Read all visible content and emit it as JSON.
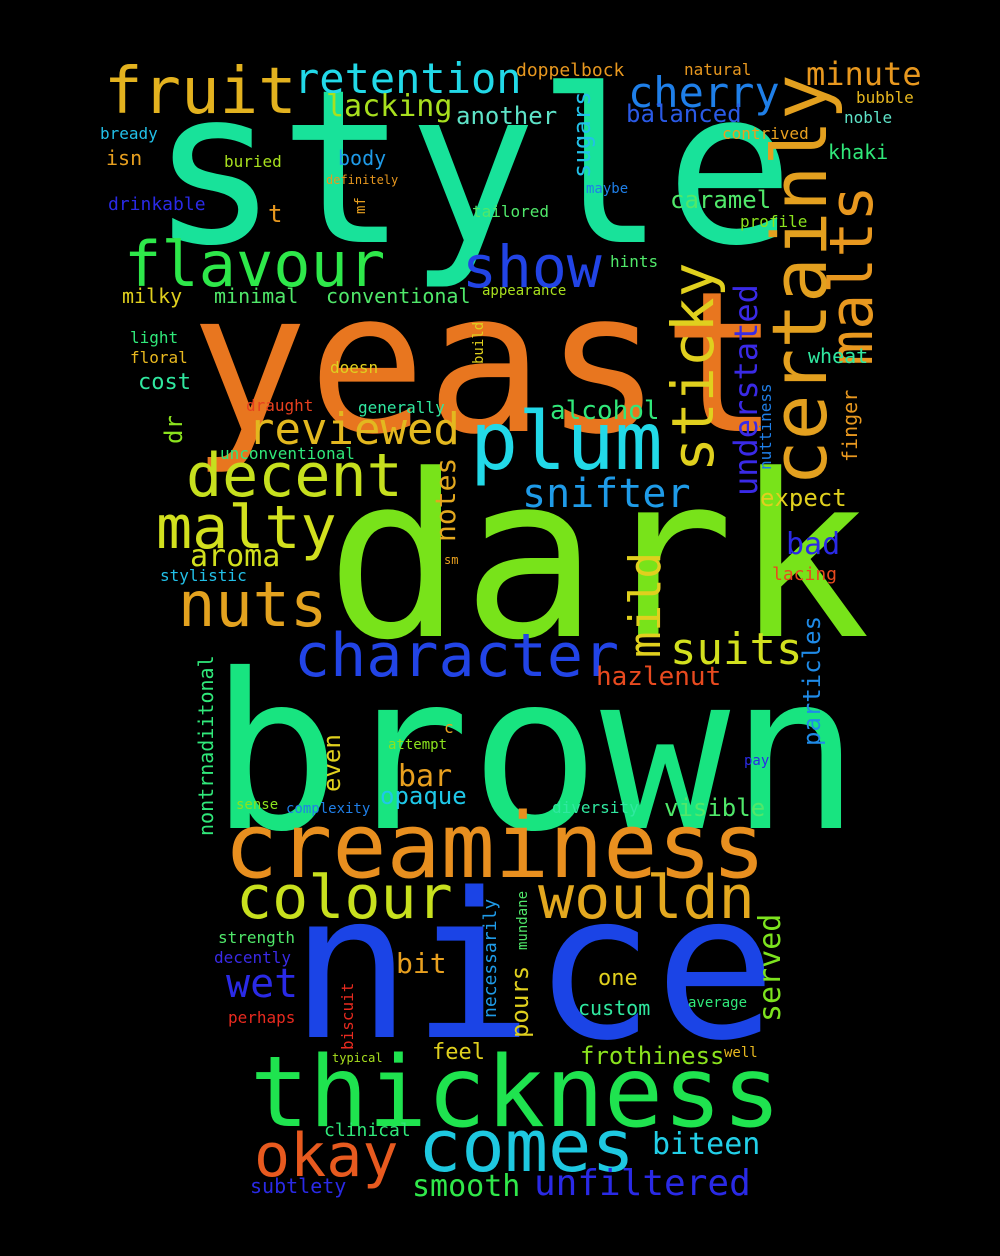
{
  "words": [
    {
      "text": "style",
      "color": "#18e29a"
    },
    {
      "text": "yeast",
      "color": "#e8761f"
    },
    {
      "text": "dark",
      "color": "#78e31a"
    },
    {
      "text": "brown",
      "color": "#18e480"
    },
    {
      "text": "nice",
      "color": "#1b44e6"
    },
    {
      "text": "creaminess",
      "color": "#e88f1f"
    },
    {
      "text": "thickness",
      "color": "#1fe34f"
    },
    {
      "text": "certainly",
      "color": "#e3a01f"
    },
    {
      "text": "comes",
      "color": "#1ec8e0"
    },
    {
      "text": "okay",
      "color": "#e85a1f"
    },
    {
      "text": "plum",
      "color": "#22d9e8"
    },
    {
      "text": "colour",
      "color": "#c8e01e"
    },
    {
      "text": "wouldn",
      "color": "#e3a81f"
    },
    {
      "text": "character",
      "color": "#2244e6"
    },
    {
      "text": "flavour",
      "color": "#2ee84a"
    },
    {
      "text": "fruit",
      "color": "#e3b21f"
    },
    {
      "text": "decent",
      "color": "#c6e01e"
    },
    {
      "text": "malty",
      "color": "#d2e01e"
    },
    {
      "text": "nuts",
      "color": "#e3a21f"
    },
    {
      "text": "malts",
      "color": "#e8981f"
    },
    {
      "text": "sticky",
      "color": "#e0d01e"
    },
    {
      "text": "show",
      "color": "#2244e6"
    },
    {
      "text": "retention",
      "color": "#22d9e8"
    },
    {
      "text": "cherry",
      "color": "#1f7fe8"
    },
    {
      "text": "reviewed",
      "color": "#e3b81f"
    },
    {
      "text": "snifter",
      "color": "#1f9be8"
    },
    {
      "text": "suits",
      "color": "#d2e01e"
    },
    {
      "text": "mild",
      "color": "#e0d01e"
    },
    {
      "text": "wet",
      "color": "#2a2ae6"
    },
    {
      "text": "served",
      "color": "#7de31e"
    },
    {
      "text": "unfiltered",
      "color": "#2a2ae6"
    },
    {
      "text": "understated",
      "color": "#3a2ae6"
    },
    {
      "text": "minute",
      "color": "#e8981f"
    },
    {
      "text": "lacking",
      "color": "#a8e01e"
    },
    {
      "text": "biteen",
      "color": "#22cfe8"
    },
    {
      "text": "smooth",
      "color": "#30e84a"
    },
    {
      "text": "aroma",
      "color": "#d2e01e"
    },
    {
      "text": "hazlenut",
      "color": "#e84a1f"
    },
    {
      "text": "bad",
      "color": "#2a2ae6"
    },
    {
      "text": "bar",
      "color": "#e8a01f"
    },
    {
      "text": "alcohol",
      "color": "#30e87a"
    },
    {
      "text": "caramel",
      "color": "#50e86a"
    },
    {
      "text": "notes",
      "color": "#e3a81f"
    },
    {
      "text": "frothiness",
      "color": "#8be31e"
    },
    {
      "text": "another",
      "color": "#5ee3c8"
    },
    {
      "text": "balanced",
      "color": "#2a5ae6"
    },
    {
      "text": "sugars",
      "color": "#22c0e8"
    },
    {
      "text": "expect",
      "color": "#e0d01e"
    },
    {
      "text": "particles",
      "color": "#1f8be8"
    },
    {
      "text": "opaque",
      "color": "#1fc8e8"
    },
    {
      "text": "visible",
      "color": "#50e86a"
    },
    {
      "text": "pours",
      "color": "#e0d01e"
    },
    {
      "text": "bit",
      "color": "#e8a01f"
    },
    {
      "text": "one",
      "color": "#e0d01e"
    },
    {
      "text": "even",
      "color": "#e0d01e"
    },
    {
      "text": "feel",
      "color": "#e0d01e"
    },
    {
      "text": "custom",
      "color": "#30e8a0"
    },
    {
      "text": "cost",
      "color": "#30e8a0"
    },
    {
      "text": "milky",
      "color": "#e0d01e"
    },
    {
      "text": "minimal",
      "color": "#50e86a"
    },
    {
      "text": "conventional",
      "color": "#50e86a"
    },
    {
      "text": "body",
      "color": "#1f9be8"
    },
    {
      "text": "khaki",
      "color": "#30e87a"
    },
    {
      "text": "wheat",
      "color": "#30e8a0"
    },
    {
      "text": "isn",
      "color": "#e8a01f"
    },
    {
      "text": "t",
      "color": "#e8981f"
    },
    {
      "text": "dr",
      "color": "#8be31e"
    },
    {
      "text": "finger",
      "color": "#e8981f"
    },
    {
      "text": "nontrnadiitonal",
      "color": "#30e87a"
    },
    {
      "text": "subtlety",
      "color": "#2a2ae6"
    },
    {
      "text": "clinical",
      "color": "#30e87a"
    },
    {
      "text": "necessarily",
      "color": "#1f9be8"
    },
    {
      "text": "lacing",
      "color": "#e84a1f"
    },
    {
      "text": "stylistic",
      "color": "#22c0e8"
    },
    {
      "text": "drinkable",
      "color": "#2a2ae6"
    },
    {
      "text": "doppelbock",
      "color": "#e8981f"
    },
    {
      "text": "natural",
      "color": "#e8981f"
    },
    {
      "text": "bubble",
      "color": "#e8b81f"
    },
    {
      "text": "noble",
      "color": "#5ee3c8"
    },
    {
      "text": "bready",
      "color": "#22c0e8"
    },
    {
      "text": "contrived",
      "color": "#e8a01f"
    },
    {
      "text": "buried",
      "color": "#a8e01e"
    },
    {
      "text": "definitely",
      "color": "#e8981f"
    },
    {
      "text": "maybe",
      "color": "#1f7fe8"
    },
    {
      "text": "tailored",
      "color": "#50e86a"
    },
    {
      "text": "profile",
      "color": "#8be31e"
    },
    {
      "text": "hints",
      "color": "#50e86a"
    },
    {
      "text": "appearance",
      "color": "#a8e01e"
    },
    {
      "text": "build",
      "color": "#e0d01e"
    },
    {
      "text": "light",
      "color": "#30e87a"
    },
    {
      "text": "floral",
      "color": "#e8b81f"
    },
    {
      "text": "doesn",
      "color": "#e0d01e"
    },
    {
      "text": "draught",
      "color": "#e8401f"
    },
    {
      "text": "generally",
      "color": "#30e8a0"
    },
    {
      "text": "unconventional",
      "color": "#30e87a"
    },
    {
      "text": "nuttiness",
      "color": "#1f7fe8"
    },
    {
      "text": "mf",
      "color": "#e8a01f"
    },
    {
      "text": "sm",
      "color": "#e8a01f"
    },
    {
      "text": "c",
      "color": "#e8a01f"
    },
    {
      "text": "attempt",
      "color": "#8be31e"
    },
    {
      "text": "sense",
      "color": "#8be31e"
    },
    {
      "text": "complexity",
      "color": "#1f7fe8"
    },
    {
      "text": "diversity",
      "color": "#30e8a0"
    },
    {
      "text": "pay",
      "color": "#2a2ae6"
    },
    {
      "text": "strength",
      "color": "#50e86a"
    },
    {
      "text": "decently",
      "color": "#3a2ae6"
    },
    {
      "text": "perhaps",
      "color": "#e82a1f"
    },
    {
      "text": "biscuit",
      "color": "#e82a1f"
    },
    {
      "text": "mundane",
      "color": "#50e86a"
    },
    {
      "text": "average",
      "color": "#30e87a"
    },
    {
      "text": "typical",
      "color": "#a8e01e"
    },
    {
      "text": "well",
      "color": "#e8b81f"
    }
  ]
}
